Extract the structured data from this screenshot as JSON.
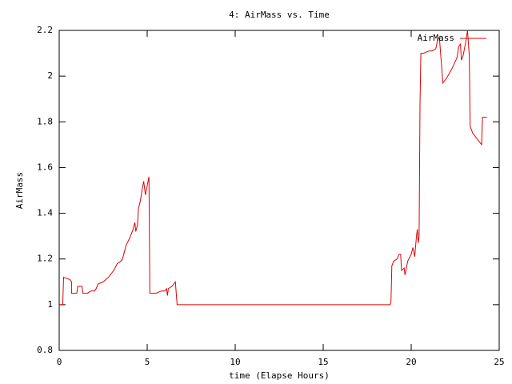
{
  "chart_data": {
    "type": "line",
    "title": "4: AirMass vs. Time",
    "x_label": "time (Elapse Hours)",
    "y_label": "AirMass",
    "x": [
      0,
      0.2,
      0.25,
      0.6,
      0.7,
      0.7,
      1.0,
      1.05,
      1.3,
      1.35,
      1.6,
      1.8,
      2.0,
      2.1,
      2.2,
      2.5,
      2.8,
      3.1,
      3.3,
      3.5,
      3.6,
      3.7,
      3.8,
      4.0,
      4.2,
      4.3,
      4.35,
      4.45,
      4.5,
      4.6,
      4.75,
      4.8,
      4.9,
      5.0,
      5.1,
      5.15,
      5.5,
      5.8,
      6.0,
      6.1,
      6.15,
      6.2,
      6.4,
      6.6,
      6.7,
      18.5,
      18.8,
      18.85,
      18.9,
      19.0,
      19.2,
      19.3,
      19.4,
      19.45,
      19.6,
      19.65,
      19.8,
      20.0,
      20.1,
      20.2,
      20.3,
      20.35,
      20.4,
      20.45,
      20.5,
      20.55,
      20.7,
      21.0,
      21.2,
      21.4,
      21.5,
      21.6,
      21.7,
      21.8,
      22.0,
      22.3,
      22.6,
      22.7,
      22.8,
      22.85,
      22.95,
      23.1,
      23.2,
      23.3,
      23.35,
      23.5,
      23.9,
      24.0,
      24.05,
      24.3
    ],
    "series": [
      {
        "name": "AirMass",
        "color": "#dd0000",
        "values": [
          1.0,
          1.0,
          1.12,
          1.11,
          1.1,
          1.05,
          1.05,
          1.08,
          1.08,
          1.05,
          1.05,
          1.06,
          1.06,
          1.07,
          1.09,
          1.1,
          1.12,
          1.15,
          1.18,
          1.19,
          1.2,
          1.23,
          1.26,
          1.29,
          1.33,
          1.36,
          1.32,
          1.35,
          1.42,
          1.45,
          1.52,
          1.54,
          1.48,
          1.52,
          1.56,
          1.05,
          1.05,
          1.06,
          1.06,
          1.07,
          1.04,
          1.07,
          1.08,
          1.1,
          1.0,
          1.0,
          1.0,
          1.01,
          1.17,
          1.19,
          1.2,
          1.22,
          1.22,
          1.15,
          1.16,
          1.13,
          1.19,
          1.22,
          1.25,
          1.21,
          1.3,
          1.33,
          1.27,
          1.3,
          1.88,
          2.1,
          2.1,
          2.11,
          2.11,
          2.12,
          2.16,
          2.17,
          2.07,
          1.97,
          1.99,
          2.03,
          2.08,
          2.13,
          2.14,
          2.07,
          2.09,
          2.15,
          2.2,
          2.09,
          1.78,
          1.75,
          1.71,
          1.7,
          1.82,
          1.82
        ]
      }
    ],
    "xlim": [
      0,
      25
    ],
    "xticks": [
      0,
      5,
      10,
      15,
      20,
      25
    ],
    "ylim": [
      0.8,
      2.2
    ],
    "yticks": [
      0.8,
      1,
      1.2,
      1.4,
      1.6,
      1.8,
      2,
      2.2
    ],
    "grid": false,
    "legend": "top-right"
  }
}
